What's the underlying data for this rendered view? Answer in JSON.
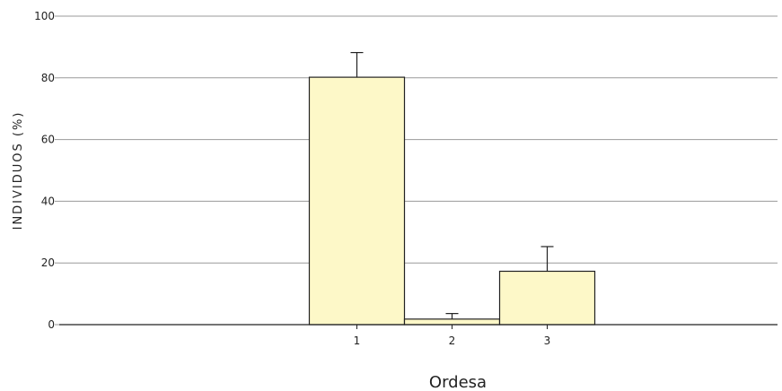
{
  "chart_data": {
    "type": "bar",
    "categories": [
      "1",
      "2",
      "3"
    ],
    "values": [
      80.2,
      1.8,
      17.3
    ],
    "errors": [
      8.0,
      1.8,
      8.0
    ],
    "xlabel": "Ordesa",
    "ylabel": "INDIVIDUOS (%)",
    "ylim": [
      0,
      100
    ],
    "yticks": [
      "0",
      "20",
      "40",
      "60",
      "80",
      "100"
    ],
    "grid": true,
    "colors": {
      "bar_fill": "#fdf8c8",
      "bar_stroke": "#222222",
      "grid": "#9a9a9a",
      "axis": "#222222",
      "error": "#222222"
    }
  }
}
